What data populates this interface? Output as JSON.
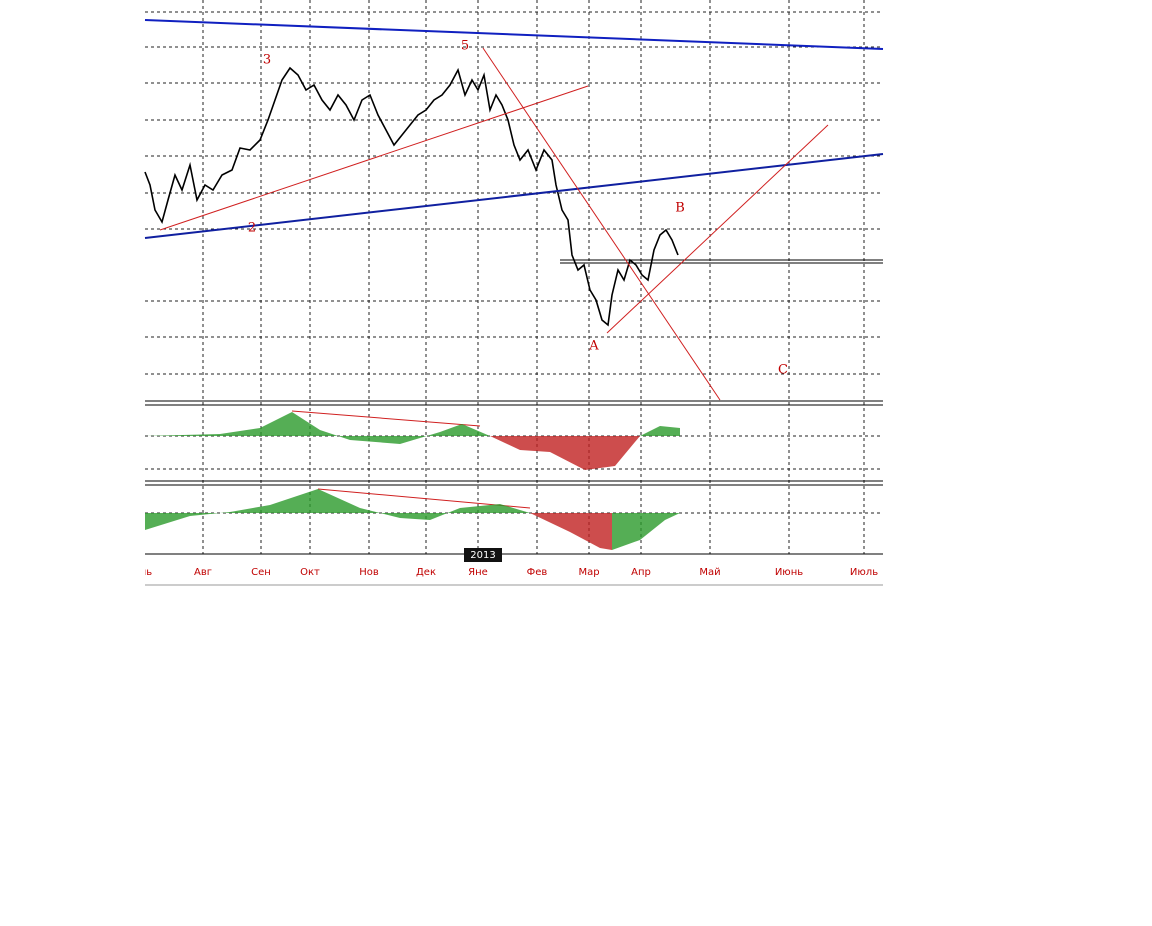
{
  "axis": {
    "month_labels": [
      "Июль",
      "Авг",
      "Сен",
      "Окт",
      "Нов",
      "Дек",
      "Яне",
      "Фев",
      "Мар",
      "Апр",
      "Май",
      "Июнь",
      "Июль"
    ],
    "year_label": "2013"
  },
  "annotations": {
    "waves": [
      "3",
      "5",
      "2",
      "A",
      "B",
      "C"
    ]
  }
}
